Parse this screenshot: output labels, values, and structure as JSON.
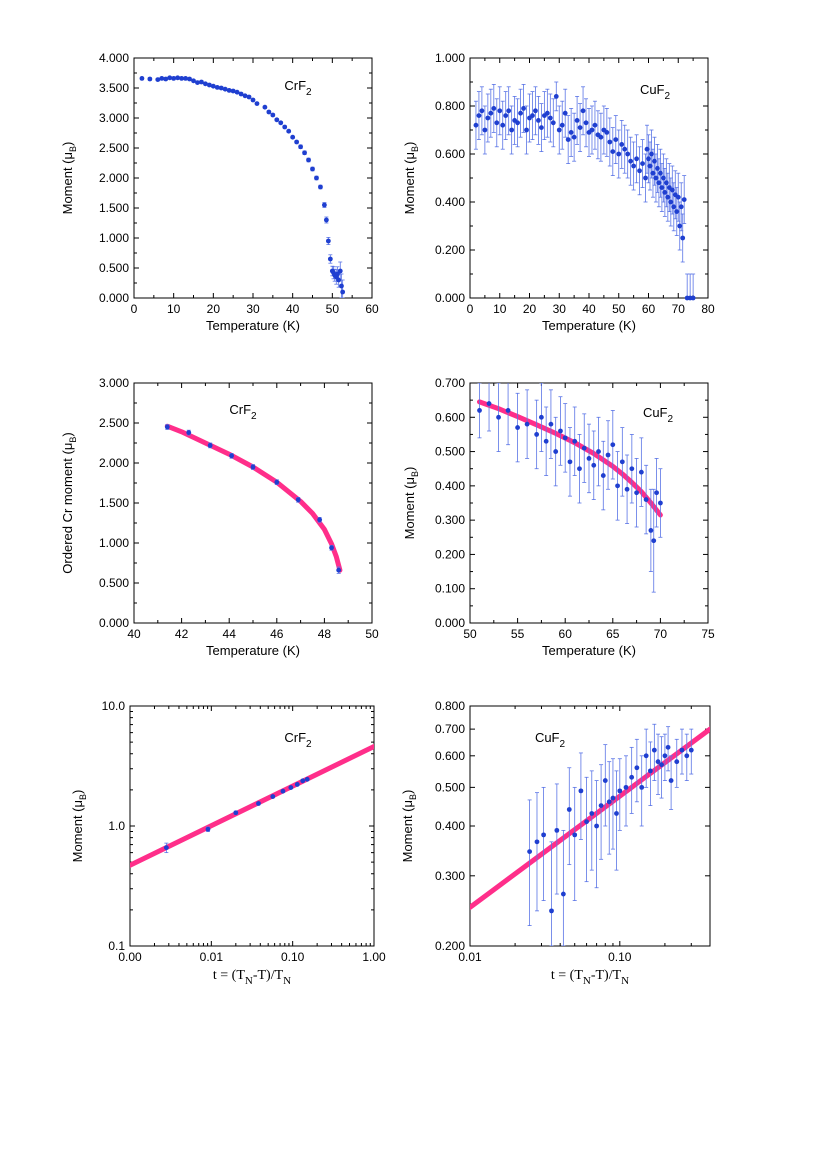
{
  "colors": {
    "points": "#1f3fd0",
    "errorbars": "#5a74e6",
    "fit": "#ff2e8a",
    "axes": "#000000"
  },
  "chart_data": [
    {
      "type": "scatter",
      "title": "CrF₂",
      "xlabel": "Temperature (K)",
      "ylabel": "Moment (μB)",
      "xlim": [
        0,
        60
      ],
      "ylim": [
        0,
        4
      ],
      "xticks": [
        "0",
        "10",
        "20",
        "30",
        "40",
        "50",
        "60"
      ],
      "yticks": [
        "0.000",
        "0.500",
        "1.000",
        "1.500",
        "2.000",
        "2.500",
        "3.000",
        "3.500",
        "4.000"
      ],
      "grid": false,
      "series": [
        {
          "x": [
            2,
            4,
            6,
            7,
            8,
            9,
            10,
            11,
            12,
            13,
            14,
            15,
            16,
            17,
            18,
            19,
            20,
            21,
            22,
            23,
            24,
            25,
            26,
            27,
            28,
            29,
            30,
            31,
            33,
            34,
            35,
            36,
            37,
            38,
            39,
            40,
            41,
            42,
            43,
            44,
            45,
            46,
            47,
            48,
            48.5,
            49,
            49.5,
            50,
            50.3,
            50.6,
            51,
            51.3,
            51.6,
            52,
            52.3,
            52.6
          ],
          "y": [
            3.66,
            3.65,
            3.64,
            3.66,
            3.65,
            3.67,
            3.66,
            3.67,
            3.66,
            3.66,
            3.65,
            3.62,
            3.59,
            3.6,
            3.57,
            3.55,
            3.53,
            3.51,
            3.5,
            3.48,
            3.46,
            3.45,
            3.43,
            3.4,
            3.37,
            3.35,
            3.3,
            3.24,
            3.18,
            3.1,
            3.05,
            2.97,
            2.92,
            2.85,
            2.78,
            2.68,
            2.6,
            2.52,
            2.42,
            2.3,
            2.15,
            2.0,
            1.85,
            1.55,
            1.3,
            0.95,
            0.65,
            0.45,
            0.42,
            0.38,
            0.35,
            0.4,
            0.3,
            0.45,
            0.2,
            0.1
          ],
          "err": [
            0.02,
            0.02,
            0.02,
            0.02,
            0.02,
            0.02,
            0.02,
            0.02,
            0.02,
            0.02,
            0.02,
            0.02,
            0.02,
            0.02,
            0.02,
            0.02,
            0.02,
            0.02,
            0.02,
            0.02,
            0.02,
            0.02,
            0.02,
            0.02,
            0.02,
            0.02,
            0.02,
            0.02,
            0.02,
            0.02,
            0.02,
            0.02,
            0.02,
            0.02,
            0.02,
            0.02,
            0.02,
            0.03,
            0.03,
            0.03,
            0.03,
            0.03,
            0.03,
            0.04,
            0.05,
            0.06,
            0.07,
            0.08,
            0.1,
            0.1,
            0.12,
            0.12,
            0.12,
            0.15,
            0.2,
            0.2
          ]
        }
      ]
    },
    {
      "type": "scatter",
      "title": "CuF₂",
      "xlabel": "Temperature (K)",
      "ylabel": "Moment (μB)",
      "xlim": [
        0,
        80
      ],
      "ylim": [
        0,
        1
      ],
      "xticks": [
        "0",
        "10",
        "20",
        "30",
        "40",
        "50",
        "60",
        "70",
        "80"
      ],
      "yticks": [
        "0.000",
        "0.200",
        "0.400",
        "0.600",
        "0.800",
        "1.000"
      ],
      "grid": false,
      "series": [
        {
          "x": [
            2,
            3,
            4,
            5,
            6,
            7,
            8,
            9,
            10,
            11,
            12,
            13,
            14,
            15,
            16,
            17,
            18,
            19,
            20,
            21,
            22,
            23,
            24,
            25,
            26,
            27,
            28,
            29,
            30,
            31,
            32,
            33,
            34,
            35,
            36,
            37,
            38,
            39,
            40,
            41,
            42,
            43,
            44,
            45,
            46,
            47,
            48,
            49,
            50,
            51,
            52,
            53,
            54,
            55,
            56,
            57,
            58,
            59,
            59.5,
            60,
            60.5,
            61,
            61.5,
            62,
            62.5,
            63,
            63.5,
            64,
            64.5,
            65,
            65.5,
            66,
            66.5,
            67,
            67.5,
            68,
            68.5,
            69,
            69.5,
            70,
            70.5,
            71,
            71.5,
            72,
            73,
            74,
            75
          ],
          "y": [
            0.72,
            0.76,
            0.78,
            0.7,
            0.75,
            0.77,
            0.79,
            0.73,
            0.78,
            0.72,
            0.76,
            0.78,
            0.7,
            0.74,
            0.73,
            0.77,
            0.79,
            0.7,
            0.75,
            0.76,
            0.78,
            0.74,
            0.71,
            0.76,
            0.77,
            0.75,
            0.73,
            0.84,
            0.7,
            0.72,
            0.77,
            0.66,
            0.69,
            0.67,
            0.74,
            0.71,
            0.78,
            0.73,
            0.69,
            0.7,
            0.72,
            0.68,
            0.67,
            0.7,
            0.69,
            0.65,
            0.61,
            0.66,
            0.6,
            0.64,
            0.62,
            0.6,
            0.57,
            0.55,
            0.58,
            0.53,
            0.56,
            0.5,
            0.62,
            0.58,
            0.55,
            0.6,
            0.52,
            0.57,
            0.5,
            0.54,
            0.48,
            0.52,
            0.46,
            0.5,
            0.44,
            0.48,
            0.42,
            0.46,
            0.4,
            0.45,
            0.38,
            0.43,
            0.36,
            0.42,
            0.3,
            0.38,
            0.25,
            0.41,
            0.0,
            0.0,
            0.0
          ],
          "err": [
            0.1,
            0.1,
            0.1,
            0.1,
            0.1,
            0.1,
            0.1,
            0.1,
            0.1,
            0.1,
            0.1,
            0.1,
            0.1,
            0.1,
            0.1,
            0.1,
            0.1,
            0.1,
            0.1,
            0.1,
            0.1,
            0.1,
            0.1,
            0.1,
            0.1,
            0.1,
            0.1,
            0.06,
            0.1,
            0.1,
            0.1,
            0.1,
            0.1,
            0.1,
            0.1,
            0.1,
            0.1,
            0.1,
            0.1,
            0.1,
            0.1,
            0.1,
            0.1,
            0.1,
            0.1,
            0.1,
            0.1,
            0.1,
            0.1,
            0.1,
            0.1,
            0.1,
            0.1,
            0.1,
            0.1,
            0.1,
            0.1,
            0.1,
            0.1,
            0.1,
            0.1,
            0.1,
            0.1,
            0.1,
            0.1,
            0.1,
            0.1,
            0.1,
            0.1,
            0.1,
            0.1,
            0.1,
            0.1,
            0.1,
            0.1,
            0.1,
            0.1,
            0.1,
            0.1,
            0.1,
            0.1,
            0.1,
            0.1,
            0.1,
            0.1,
            0.1,
            0.1
          ]
        }
      ]
    },
    {
      "type": "scatter",
      "title": "CrF₂",
      "xlabel": "Temperature (K)",
      "ylabel": "Ordered Cr moment (μB)",
      "xlim": [
        40,
        50
      ],
      "ylim": [
        0,
        3
      ],
      "xticks": [
        "40",
        "42",
        "44",
        "46",
        "48",
        "50"
      ],
      "yticks": [
        "0.000",
        "0.500",
        "1.000",
        "1.500",
        "2.000",
        "2.500",
        "3.000"
      ],
      "grid": false,
      "series": [
        {
          "x": [
            41.4,
            42.3,
            43.2,
            44.1,
            45.0,
            46.0,
            46.9,
            47.8,
            48.3,
            48.6
          ],
          "y": [
            2.45,
            2.38,
            2.22,
            2.09,
            1.95,
            1.76,
            1.54,
            1.29,
            0.94,
            0.66
          ],
          "err": [
            0.03,
            0.03,
            0.03,
            0.03,
            0.03,
            0.03,
            0.03,
            0.03,
            0.03,
            0.04
          ]
        }
      ],
      "fit": {
        "x": [
          41.4,
          42,
          43,
          44,
          45,
          46,
          47,
          47.5,
          48,
          48.3,
          48.5,
          48.65
        ],
        "y": [
          2.46,
          2.39,
          2.25,
          2.11,
          1.95,
          1.76,
          1.52,
          1.37,
          1.17,
          0.99,
          0.83,
          0.66
        ]
      }
    },
    {
      "type": "scatter",
      "title": "CuF₂",
      "xlabel": "Temperature (K)",
      "ylabel": "Moment (μB)",
      "xlim": [
        50,
        75
      ],
      "ylim": [
        0,
        0.7
      ],
      "xticks": [
        "50",
        "55",
        "60",
        "65",
        "70",
        "75"
      ],
      "yticks": [
        "0.000",
        "0.100",
        "0.200",
        "0.300",
        "0.400",
        "0.500",
        "0.600",
        "0.700"
      ],
      "grid": false,
      "series": [
        {
          "x": [
            51,
            52,
            53,
            54,
            55,
            56,
            57,
            57.5,
            58,
            58.5,
            59,
            59.5,
            60,
            60.5,
            61,
            61.5,
            62,
            62.5,
            63,
            63.5,
            64,
            64.5,
            65,
            65.5,
            66,
            66.5,
            67,
            67.5,
            68,
            68.5,
            69,
            69.3,
            69.6,
            70
          ],
          "y": [
            0.62,
            0.64,
            0.6,
            0.62,
            0.57,
            0.58,
            0.55,
            0.6,
            0.53,
            0.58,
            0.5,
            0.56,
            0.54,
            0.47,
            0.53,
            0.45,
            0.51,
            0.48,
            0.46,
            0.5,
            0.43,
            0.49,
            0.52,
            0.4,
            0.47,
            0.39,
            0.45,
            0.38,
            0.44,
            0.36,
            0.27,
            0.24,
            0.38,
            0.35
          ],
          "err": [
            0.08,
            0.08,
            0.1,
            0.1,
            0.1,
            0.1,
            0.1,
            0.1,
            0.1,
            0.1,
            0.1,
            0.1,
            0.1,
            0.1,
            0.1,
            0.1,
            0.1,
            0.1,
            0.1,
            0.1,
            0.1,
            0.1,
            0.1,
            0.1,
            0.1,
            0.1,
            0.1,
            0.1,
            0.1,
            0.1,
            0.12,
            0.15,
            0.1,
            0.1
          ]
        }
      ],
      "fit": {
        "x": [
          51,
          53,
          55,
          57,
          59,
          61,
          63,
          65,
          66,
          67,
          68,
          69,
          70
        ],
        "y": [
          0.645,
          0.625,
          0.602,
          0.578,
          0.553,
          0.526,
          0.494,
          0.457,
          0.435,
          0.41,
          0.383,
          0.35,
          0.315
        ]
      }
    },
    {
      "type": "scatter",
      "title": "CrF₂",
      "xlabel": "t = (TN-T)/TN",
      "ylabel": "Moment (μB)",
      "xlim": [
        0.001,
        1.0
      ],
      "ylim": [
        0.1,
        10
      ],
      "xscale": "log",
      "yscale": "log",
      "xticks": [
        "0.00",
        "0.01",
        "0.10",
        "1.00"
      ],
      "yticks": [
        "0.1",
        "1.0",
        "10.0"
      ],
      "grid": false,
      "series": [
        {
          "x": [
            0.0028,
            0.0091,
            0.02,
            0.038,
            0.057,
            0.076,
            0.095,
            0.114,
            0.133,
            0.151
          ],
          "y": [
            0.66,
            0.94,
            1.29,
            1.54,
            1.76,
            1.95,
            2.09,
            2.22,
            2.38,
            2.45
          ],
          "err": [
            0.06,
            0.04,
            0.04,
            0.03,
            0.03,
            0.03,
            0.03,
            0.03,
            0.03,
            0.03
          ]
        }
      ],
      "fit": {
        "x": [
          0.001,
          1.0
        ],
        "y": [
          0.47,
          4.6
        ]
      }
    },
    {
      "type": "scatter",
      "title": "CuF₂",
      "xlabel": "t = (TN-T)/TN",
      "ylabel": "Moment (μB)",
      "xlim": [
        0.01,
        0.4
      ],
      "ylim": [
        0.2,
        0.8
      ],
      "xscale": "log",
      "yscale": "log",
      "xticks": [
        "0.01",
        "0.10"
      ],
      "yticks": [
        "0.200",
        "0.300",
        "0.400",
        "0.500",
        "0.600",
        "0.700",
        "0.800"
      ],
      "grid": false,
      "series": [
        {
          "x": [
            0.025,
            0.028,
            0.031,
            0.035,
            0.038,
            0.042,
            0.046,
            0.05,
            0.055,
            0.06,
            0.065,
            0.07,
            0.075,
            0.08,
            0.085,
            0.09,
            0.095,
            0.1,
            0.11,
            0.12,
            0.13,
            0.14,
            0.15,
            0.16,
            0.17,
            0.18,
            0.19,
            0.2,
            0.21,
            0.22,
            0.24,
            0.26,
            0.28,
            0.3
          ],
          "y": [
            0.345,
            0.365,
            0.38,
            0.245,
            0.39,
            0.27,
            0.44,
            0.38,
            0.49,
            0.41,
            0.43,
            0.4,
            0.45,
            0.52,
            0.46,
            0.47,
            0.43,
            0.49,
            0.5,
            0.53,
            0.56,
            0.5,
            0.6,
            0.55,
            0.62,
            0.58,
            0.57,
            0.6,
            0.63,
            0.52,
            0.58,
            0.62,
            0.6,
            0.62
          ],
          "err": [
            0.12,
            0.12,
            0.12,
            0.12,
            0.12,
            0.12,
            0.12,
            0.12,
            0.12,
            0.12,
            0.12,
            0.12,
            0.12,
            0.12,
            0.12,
            0.12,
            0.12,
            0.1,
            0.1,
            0.1,
            0.1,
            0.1,
            0.1,
            0.1,
            0.1,
            0.1,
            0.1,
            0.08,
            0.08,
            0.08,
            0.08,
            0.08,
            0.08,
            0.08
          ]
        }
      ],
      "fit": {
        "x": [
          0.01,
          0.4
        ],
        "y": [
          0.25,
          0.7
        ]
      }
    }
  ]
}
